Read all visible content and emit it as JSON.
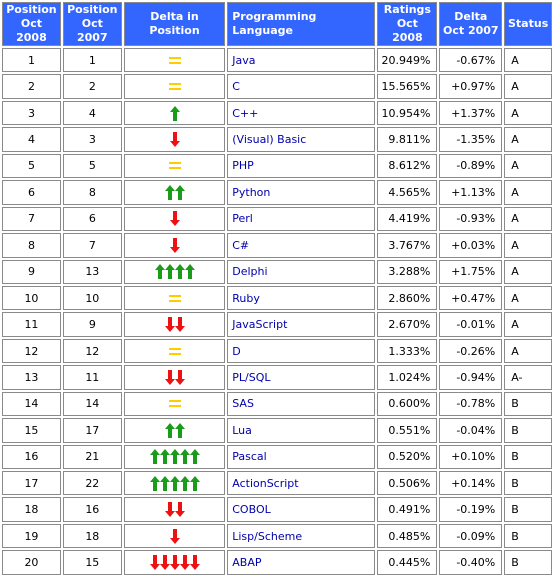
{
  "columns": [
    {
      "line1": "Position",
      "line2": "Oct 2008"
    },
    {
      "line1": "Position",
      "line2": "Oct 2007"
    },
    {
      "line1": "Delta in Position",
      "line2": ""
    },
    {
      "line1": "Programming Language",
      "line2": ""
    },
    {
      "line1": "Ratings",
      "line2": "Oct 2008"
    },
    {
      "line1": "Delta",
      "line2": "Oct 2007"
    },
    {
      "line1": "Status",
      "line2": ""
    }
  ],
  "colors": {
    "header_bg": "#3366ff",
    "up_arrow": "#1a9c1a",
    "down_arrow": "#ee1111",
    "equal": "#ffcc00",
    "language_text": "#0000aa"
  },
  "rows": [
    {
      "pos2008": "1",
      "pos2007": "1",
      "delta": {
        "dir": "equal",
        "count": 1
      },
      "language": "Java",
      "rating": "20.949%",
      "delta_rating": "-0.67%",
      "status": "A"
    },
    {
      "pos2008": "2",
      "pos2007": "2",
      "delta": {
        "dir": "equal",
        "count": 1
      },
      "language": "C",
      "rating": "15.565%",
      "delta_rating": "+0.97%",
      "status": "A"
    },
    {
      "pos2008": "3",
      "pos2007": "4",
      "delta": {
        "dir": "up",
        "count": 1
      },
      "language": "C++",
      "rating": "10.954%",
      "delta_rating": "+1.37%",
      "status": "A"
    },
    {
      "pos2008": "4",
      "pos2007": "3",
      "delta": {
        "dir": "down",
        "count": 1
      },
      "language": "(Visual) Basic",
      "rating": "9.811%",
      "delta_rating": "-1.35%",
      "status": "A"
    },
    {
      "pos2008": "5",
      "pos2007": "5",
      "delta": {
        "dir": "equal",
        "count": 1
      },
      "language": "PHP",
      "rating": "8.612%",
      "delta_rating": "-0.89%",
      "status": "A"
    },
    {
      "pos2008": "6",
      "pos2007": "8",
      "delta": {
        "dir": "up",
        "count": 2
      },
      "language": "Python",
      "rating": "4.565%",
      "delta_rating": "+1.13%",
      "status": "A"
    },
    {
      "pos2008": "7",
      "pos2007": "6",
      "delta": {
        "dir": "down",
        "count": 1
      },
      "language": "Perl",
      "rating": "4.419%",
      "delta_rating": "-0.93%",
      "status": "A"
    },
    {
      "pos2008": "8",
      "pos2007": "7",
      "delta": {
        "dir": "down",
        "count": 1
      },
      "language": "C#",
      "rating": "3.767%",
      "delta_rating": "+0.03%",
      "status": "A"
    },
    {
      "pos2008": "9",
      "pos2007": "13",
      "delta": {
        "dir": "up",
        "count": 4
      },
      "language": "Delphi",
      "rating": "3.288%",
      "delta_rating": "+1.75%",
      "status": "A"
    },
    {
      "pos2008": "10",
      "pos2007": "10",
      "delta": {
        "dir": "equal",
        "count": 1
      },
      "language": "Ruby",
      "rating": "2.860%",
      "delta_rating": "+0.47%",
      "status": "A"
    },
    {
      "pos2008": "11",
      "pos2007": "9",
      "delta": {
        "dir": "down",
        "count": 2
      },
      "language": "JavaScript",
      "rating": "2.670%",
      "delta_rating": "-0.01%",
      "status": "A"
    },
    {
      "pos2008": "12",
      "pos2007": "12",
      "delta": {
        "dir": "equal",
        "count": 1
      },
      "language": "D",
      "rating": "1.333%",
      "delta_rating": "-0.26%",
      "status": "A"
    },
    {
      "pos2008": "13",
      "pos2007": "11",
      "delta": {
        "dir": "down",
        "count": 2
      },
      "language": "PL/SQL",
      "rating": "1.024%",
      "delta_rating": "-0.94%",
      "status": "A-"
    },
    {
      "pos2008": "14",
      "pos2007": "14",
      "delta": {
        "dir": "equal",
        "count": 1
      },
      "language": "SAS",
      "rating": "0.600%",
      "delta_rating": "-0.78%",
      "status": "B"
    },
    {
      "pos2008": "15",
      "pos2007": "17",
      "delta": {
        "dir": "up",
        "count": 2
      },
      "language": "Lua",
      "rating": "0.551%",
      "delta_rating": "-0.04%",
      "status": "B"
    },
    {
      "pos2008": "16",
      "pos2007": "21",
      "delta": {
        "dir": "up",
        "count": 5
      },
      "language": "Pascal",
      "rating": "0.520%",
      "delta_rating": "+0.10%",
      "status": "B"
    },
    {
      "pos2008": "17",
      "pos2007": "22",
      "delta": {
        "dir": "up",
        "count": 5
      },
      "language": "ActionScript",
      "rating": "0.506%",
      "delta_rating": "+0.14%",
      "status": "B"
    },
    {
      "pos2008": "18",
      "pos2007": "16",
      "delta": {
        "dir": "down",
        "count": 2
      },
      "language": "COBOL",
      "rating": "0.491%",
      "delta_rating": "-0.19%",
      "status": "B"
    },
    {
      "pos2008": "19",
      "pos2007": "18",
      "delta": {
        "dir": "down",
        "count": 1
      },
      "language": "Lisp/Scheme",
      "rating": "0.485%",
      "delta_rating": "-0.09%",
      "status": "B"
    },
    {
      "pos2008": "20",
      "pos2007": "15",
      "delta": {
        "dir": "down",
        "count": 5
      },
      "language": "ABAP",
      "rating": "0.445%",
      "delta_rating": "-0.40%",
      "status": "B"
    }
  ]
}
